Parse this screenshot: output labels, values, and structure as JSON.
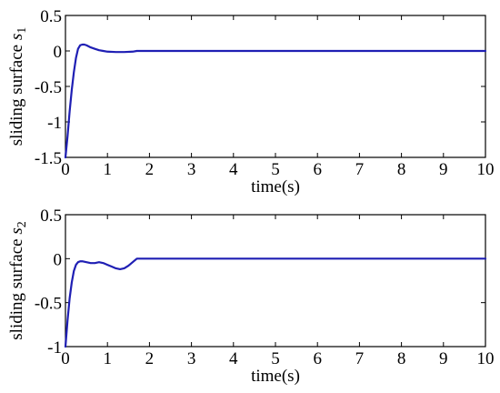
{
  "chart_data": [
    {
      "type": "line",
      "ylabel": "sliding surface ",
      "ylabel_var": "s",
      "ylabel_sub": "1",
      "xlabel": "time(s)",
      "xlim": [
        0,
        10
      ],
      "ylim": [
        -1.5,
        0.5
      ],
      "xticks": [
        "0",
        "1",
        "2",
        "3",
        "4",
        "5",
        "6",
        "7",
        "8",
        "9",
        "10"
      ],
      "yticks": [
        "0.5",
        "0",
        "-0.5",
        "-1",
        "-1.5"
      ],
      "ytick_values": [
        0.5,
        0,
        -0.5,
        -1,
        -1.5
      ],
      "color": "#1f1fb4",
      "x": [
        0,
        0.05,
        0.1,
        0.15,
        0.2,
        0.25,
        0.3,
        0.35,
        0.4,
        0.45,
        0.5,
        0.6,
        0.7,
        0.8,
        0.9,
        1.0,
        1.2,
        1.4,
        1.6,
        1.7,
        2,
        3,
        4,
        5,
        6,
        7,
        8,
        9,
        10
      ],
      "y": [
        -1.5,
        -1.2,
        -0.85,
        -0.55,
        -0.3,
        -0.1,
        0.03,
        0.08,
        0.09,
        0.09,
        0.08,
        0.05,
        0.03,
        0.01,
        0.0,
        -0.01,
        -0.015,
        -0.015,
        -0.01,
        0,
        0,
        0,
        0,
        0,
        0,
        0,
        0,
        0,
        0
      ]
    },
    {
      "type": "line",
      "ylabel": "sliding surface ",
      "ylabel_var": "s",
      "ylabel_sub": "2",
      "xlabel": "time(s)",
      "xlim": [
        0,
        10
      ],
      "ylim": [
        -1,
        0.5
      ],
      "xticks": [
        "0",
        "1",
        "2",
        "3",
        "4",
        "5",
        "6",
        "7",
        "8",
        "9",
        "10"
      ],
      "yticks": [
        "0.5",
        "0",
        "-0.5",
        "-1"
      ],
      "ytick_values": [
        0.5,
        0,
        -0.5,
        -1
      ],
      "color": "#1f1fb4",
      "x": [
        0,
        0.05,
        0.1,
        0.15,
        0.2,
        0.25,
        0.3,
        0.35,
        0.4,
        0.5,
        0.6,
        0.7,
        0.8,
        0.9,
        1.0,
        1.1,
        1.2,
        1.3,
        1.4,
        1.5,
        1.6,
        1.7,
        1.8,
        2,
        3,
        4,
        5,
        6,
        7,
        8,
        9,
        10
      ],
      "y": [
        -1.0,
        -0.7,
        -0.45,
        -0.27,
        -0.14,
        -0.07,
        -0.04,
        -0.03,
        -0.03,
        -0.04,
        -0.05,
        -0.05,
        -0.04,
        -0.05,
        -0.07,
        -0.09,
        -0.11,
        -0.12,
        -0.11,
        -0.08,
        -0.04,
        0,
        0,
        0,
        0,
        0,
        0,
        0,
        0,
        0,
        0,
        0
      ]
    }
  ]
}
